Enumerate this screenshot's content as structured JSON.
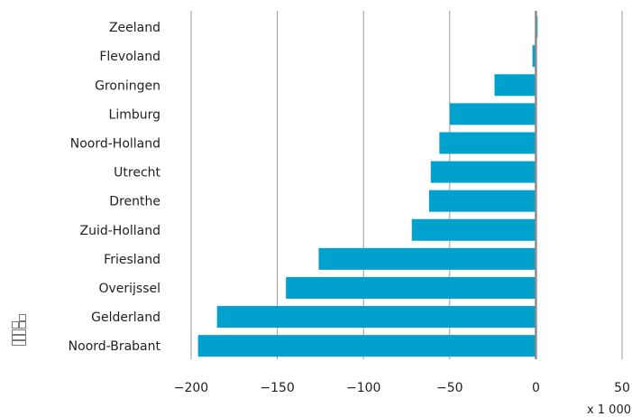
{
  "chart_data": {
    "type": "bar",
    "orientation": "horizontal",
    "categories": [
      "Zeeland",
      "Flevoland",
      "Groningen",
      "Limburg",
      "Noord-Holland",
      "Utrecht",
      "Drenthe",
      "Zuid-Holland",
      "Friesland",
      "Overijssel",
      "Gelderland",
      "Noord-Brabant"
    ],
    "values": [
      1,
      -2,
      -24,
      -50,
      -56,
      -61,
      -62,
      -72,
      -126,
      -145,
      -185,
      -196
    ],
    "xlim": [
      -200,
      50
    ],
    "xticks": [
      -200,
      -150,
      -100,
      -50,
      0,
      50
    ],
    "xtick_labels": [
      "−200",
      "−150",
      "−100",
      "−50",
      "0",
      "50"
    ],
    "unit_label": "x 1 000",
    "grid": "vertical",
    "colors": {
      "bar": "#00a1cd",
      "zero_line": "#8c8c8c",
      "grid": "#9b9b9b"
    }
  },
  "logo": {
    "name": "cbs-logo"
  }
}
